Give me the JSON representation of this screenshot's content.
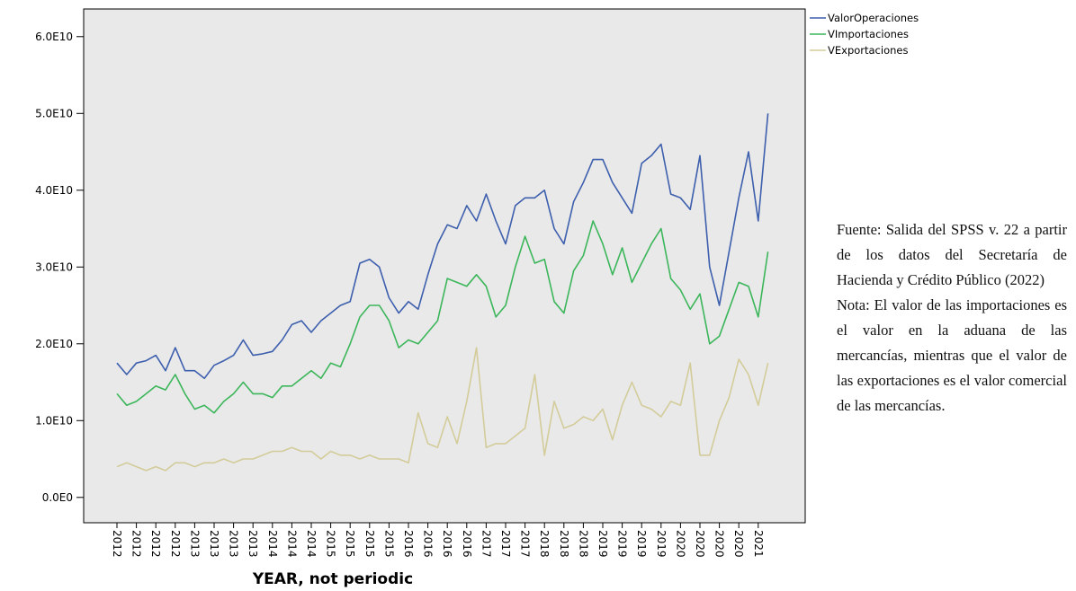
{
  "chart_data": {
    "type": "line",
    "x_label": "YEAR, not periodic",
    "categories": [
      "2012",
      null,
      "2012",
      null,
      "2012",
      null,
      "2012",
      null,
      "2013",
      null,
      "2013",
      null,
      "2013",
      null,
      "2013",
      null,
      "2014",
      null,
      "2014",
      null,
      "2014",
      null,
      "2015",
      null,
      "2015",
      null,
      "2015",
      null,
      "2015",
      null,
      "2016",
      null,
      "2016",
      null,
      "2016",
      null,
      "2016",
      null,
      "2017",
      null,
      "2017",
      null,
      "2017",
      null,
      "2018",
      null,
      "2018",
      null,
      "2018",
      null,
      "2019",
      null,
      "2019",
      null,
      "2019",
      null,
      "2019",
      null,
      "2020",
      null,
      "2020",
      null,
      "2020",
      null,
      "2020",
      null,
      "2021",
      null
    ],
    "series": [
      {
        "name": "ValorOperaciones",
        "color": "#3d5fad",
        "values": [
          17500000000.0,
          16000000000.0,
          17500000000.0,
          17800000000.0,
          18500000000.0,
          16500000000.0,
          19500000000.0,
          16500000000.0,
          16500000000.0,
          15500000000.0,
          17200000000.0,
          17800000000.0,
          18500000000.0,
          20500000000.0,
          18500000000.0,
          18700000000.0,
          19000000000.0,
          20500000000.0,
          22500000000.0,
          23000000000.0,
          21500000000.0,
          23000000000.0,
          24000000000.0,
          25000000000.0,
          25500000000.0,
          30500000000.0,
          31000000000.0,
          30000000000.0,
          26000000000.0,
          24000000000.0,
          25500000000.0,
          24500000000.0,
          29000000000.0,
          33000000000.0,
          35500000000.0,
          35000000000.0,
          38000000000.0,
          36000000000.0,
          39500000000.0,
          36000000000.0,
          33000000000.0,
          38000000000.0,
          39000000000.0,
          39000000000.0,
          40000000000.0,
          35000000000.0,
          33000000000.0,
          38500000000.0,
          41000000000.0,
          44000000000.0,
          44000000000.0,
          41000000000.0,
          39000000000.0,
          37000000000.0,
          43500000000.0,
          44500000000.0,
          46000000000.0,
          39500000000.0,
          39000000000.0,
          37500000000.0,
          44500000000.0,
          30000000000.0,
          25000000000.0,
          32000000000.0,
          39000000000.0,
          45000000000.0,
          36000000000.0,
          50000000000.0
        ]
      },
      {
        "name": "VImportaciones",
        "color": "#3cb65a",
        "values": [
          13500000000.0,
          12000000000.0,
          12500000000.0,
          13500000000.0,
          14500000000.0,
          14000000000.0,
          16000000000.0,
          13500000000.0,
          11500000000.0,
          12000000000.0,
          11000000000.0,
          12500000000.0,
          13500000000.0,
          15000000000.0,
          13500000000.0,
          13500000000.0,
          13000000000.0,
          14500000000.0,
          14500000000.0,
          15500000000.0,
          16500000000.0,
          15500000000.0,
          17500000000.0,
          17000000000.0,
          20000000000.0,
          23500000000.0,
          25000000000.0,
          25000000000.0,
          23000000000.0,
          19500000000.0,
          20500000000.0,
          20000000000.0,
          21500000000.0,
          23000000000.0,
          28500000000.0,
          28000000000.0,
          27500000000.0,
          29000000000.0,
          27500000000.0,
          23500000000.0,
          25000000000.0,
          30000000000.0,
          34000000000.0,
          30500000000.0,
          31000000000.0,
          25500000000.0,
          24000000000.0,
          29500000000.0,
          31500000000.0,
          36000000000.0,
          33000000000.0,
          29000000000.0,
          32500000000.0,
          28000000000.0,
          30500000000.0,
          33000000000.0,
          35000000000.0,
          28500000000.0,
          27000000000.0,
          24500000000.0,
          26500000000.0,
          20000000000.0,
          21000000000.0,
          24500000000.0,
          28000000000.0,
          27500000000.0,
          23500000000.0,
          32000000000.0
        ]
      },
      {
        "name": "VExportaciones",
        "color": "#d3cc9a",
        "values": [
          4000000000.0,
          4500000000.0,
          4000000000.0,
          3500000000.0,
          4000000000.0,
          3500000000.0,
          4500000000.0,
          4500000000.0,
          4000000000.0,
          4500000000.0,
          4500000000.0,
          5000000000.0,
          4500000000.0,
          5000000000.0,
          5000000000.0,
          5500000000.0,
          6000000000.0,
          6000000000.0,
          6500000000.0,
          6000000000.0,
          6000000000.0,
          5000000000.0,
          6000000000.0,
          5500000000.0,
          5500000000.0,
          5000000000.0,
          5500000000.0,
          5000000000.0,
          5000000000.0,
          5000000000.0,
          4500000000.0,
          11000000000.0,
          7000000000.0,
          6500000000.0,
          10500000000.0,
          7000000000.0,
          12500000000.0,
          19500000000.0,
          6500000000.0,
          7000000000.0,
          7000000000.0,
          8000000000.0,
          9000000000.0,
          16000000000.0,
          5500000000.0,
          12500000000.0,
          9000000000.0,
          9500000000.0,
          10500000000.0,
          10000000000.0,
          11500000000.0,
          7500000000.0,
          12000000000.0,
          15000000000.0,
          12000000000.0,
          11500000000.0,
          10500000000.0,
          12500000000.0,
          12000000000.0,
          17500000000.0,
          5500000000.0,
          5500000000.0,
          10000000000.0,
          13000000000.0,
          18000000000.0,
          16000000000.0,
          12000000000.0,
          17500000000.0
        ]
      }
    ],
    "ylim": [
      -3300000000.0,
      63600000000.0
    ],
    "yticks": [
      {
        "value": 0,
        "label": "0.0E0"
      },
      {
        "value": 10000000000.0,
        "label": "1.0E10"
      },
      {
        "value": 20000000000.0,
        "label": "2.0E10"
      },
      {
        "value": 30000000000.0,
        "label": "3.0E10"
      },
      {
        "value": 40000000000.0,
        "label": "4.0E10"
      },
      {
        "value": 50000000000.0,
        "label": "5.0E10"
      },
      {
        "value": 60000000000.0,
        "label": "6.0E10"
      }
    ],
    "grid": false,
    "legend": "right",
    "plot_background": "#e9e9e9"
  },
  "note": {
    "source": "Fuente: Salida del SPSS v. 22 a partir de los datos del Secretaría de Hacienda y Crédito Público (2022)",
    "text": "Nota: El valor de las importaciones es el valor en la aduana de las mercancías, mientras que el valor de las exportaciones es el valor comercial de las mercancías."
  }
}
